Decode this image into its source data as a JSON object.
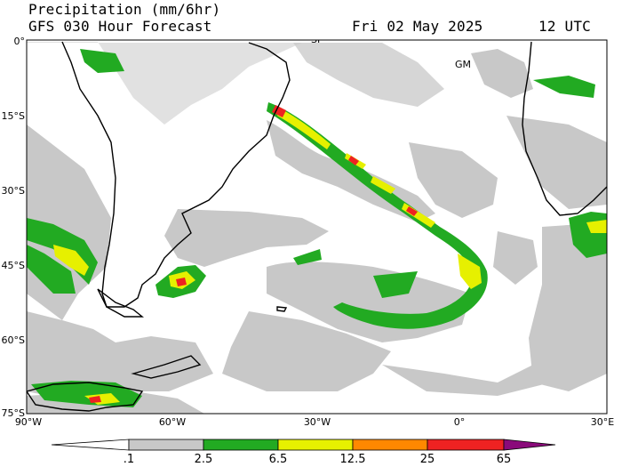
{
  "header": {
    "title": "Precipitation (mm/6hr)",
    "subtitle": "GFS 030 Hour Forecast",
    "date": "Fri 02 May 2025",
    "time": "12 UTC"
  },
  "map": {
    "lat_labels": [
      "0°",
      "15°S",
      "30°S",
      "45°S",
      "60°S",
      "75°S"
    ],
    "lon_labels": [
      "90°W",
      "60°W",
      "30°W",
      "0°",
      "30°E"
    ],
    "place_labels": [
      "SP",
      "GM"
    ]
  },
  "colorbar": {
    "labels": [
      ".1",
      "2.5",
      "6.5",
      "12.5",
      "25",
      "65"
    ],
    "colors": [
      "#ffffff",
      "#c8c8c8",
      "#22aa22",
      "#e6f000",
      "#ff8800",
      "#ee2222",
      "#8a0a7a"
    ]
  }
}
